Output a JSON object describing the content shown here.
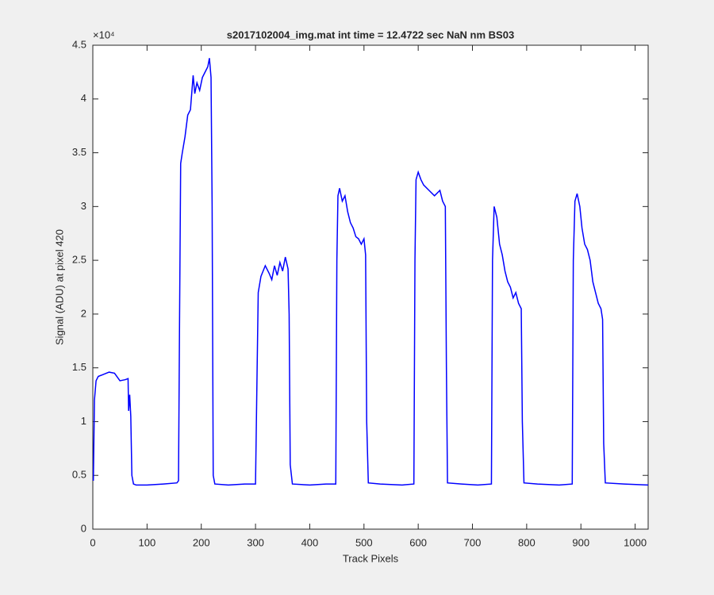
{
  "chart_data": {
    "type": "line",
    "title": "s2017102004_img.mat int time = 12.4722 sec  NaN nm BS03",
    "x_label": "Track Pixels",
    "y_label": "Signal (ADU) at pixel 420",
    "y_multiplier": "×10⁴",
    "xlim": [
      0,
      1024
    ],
    "xticks": [
      0,
      100,
      200,
      300,
      400,
      500,
      600,
      700,
      800,
      900,
      1000
    ],
    "ylim": [
      0,
      4.5
    ],
    "yticks": [
      0,
      0.5,
      1,
      1.5,
      2,
      2.5,
      3,
      3.5,
      4,
      4.5
    ],
    "x": [
      1,
      3,
      6,
      10,
      20,
      30,
      40,
      50,
      60,
      65,
      66,
      68,
      70,
      72,
      75,
      80,
      100,
      130,
      155,
      158,
      160,
      162,
      165,
      170,
      175,
      180,
      185,
      188,
      192,
      197,
      202,
      207,
      212,
      215,
      218,
      220,
      222,
      225,
      250,
      280,
      300,
      303,
      305,
      310,
      318,
      325,
      330,
      335,
      340,
      345,
      350,
      355,
      360,
      362,
      364,
      368,
      400,
      430,
      448,
      450,
      452,
      455,
      460,
      465,
      470,
      475,
      480,
      485,
      490,
      495,
      500,
      503,
      505,
      508,
      530,
      570,
      592,
      594,
      596,
      600,
      605,
      610,
      620,
      630,
      640,
      645,
      650,
      652,
      654,
      680,
      710,
      735,
      737,
      740,
      745,
      750,
      755,
      760,
      765,
      770,
      775,
      780,
      785,
      790,
      792,
      795,
      820,
      860,
      884,
      886,
      889,
      893,
      898,
      902,
      907,
      912,
      917,
      922,
      927,
      932,
      937,
      940,
      942,
      945,
      980,
      1024
    ],
    "series": [
      {
        "color": "#0000ff",
        "values": [
          0.45,
          1.2,
          1.38,
          1.42,
          1.44,
          1.46,
          1.45,
          1.38,
          1.39,
          1.4,
          1.1,
          1.25,
          1.05,
          0.5,
          0.42,
          0.41,
          0.41,
          0.42,
          0.43,
          0.45,
          2.0,
          3.4,
          3.5,
          3.65,
          3.85,
          3.9,
          4.22,
          4.05,
          4.15,
          4.08,
          4.2,
          4.25,
          4.3,
          4.38,
          4.2,
          3.0,
          0.5,
          0.42,
          0.41,
          0.42,
          0.42,
          1.5,
          2.2,
          2.35,
          2.45,
          2.38,
          2.32,
          2.45,
          2.36,
          2.48,
          2.4,
          2.53,
          2.42,
          2.0,
          0.6,
          0.42,
          0.41,
          0.42,
          0.42,
          2.5,
          3.1,
          3.17,
          3.05,
          3.1,
          2.95,
          2.85,
          2.8,
          2.72,
          2.7,
          2.65,
          2.7,
          2.55,
          1.0,
          0.43,
          0.42,
          0.41,
          0.42,
          2.5,
          3.25,
          3.32,
          3.25,
          3.2,
          3.15,
          3.1,
          3.15,
          3.05,
          3.0,
          1.5,
          0.43,
          0.42,
          0.41,
          0.42,
          2.5,
          3.0,
          2.9,
          2.65,
          2.55,
          2.4,
          2.3,
          2.25,
          2.15,
          2.2,
          2.1,
          2.05,
          1.0,
          0.43,
          0.42,
          0.41,
          0.42,
          2.5,
          3.05,
          3.12,
          3.0,
          2.8,
          2.65,
          2.6,
          2.5,
          2.3,
          2.2,
          2.1,
          2.05,
          1.95,
          0.8,
          0.43,
          0.42,
          0.41
        ]
      }
    ]
  }
}
